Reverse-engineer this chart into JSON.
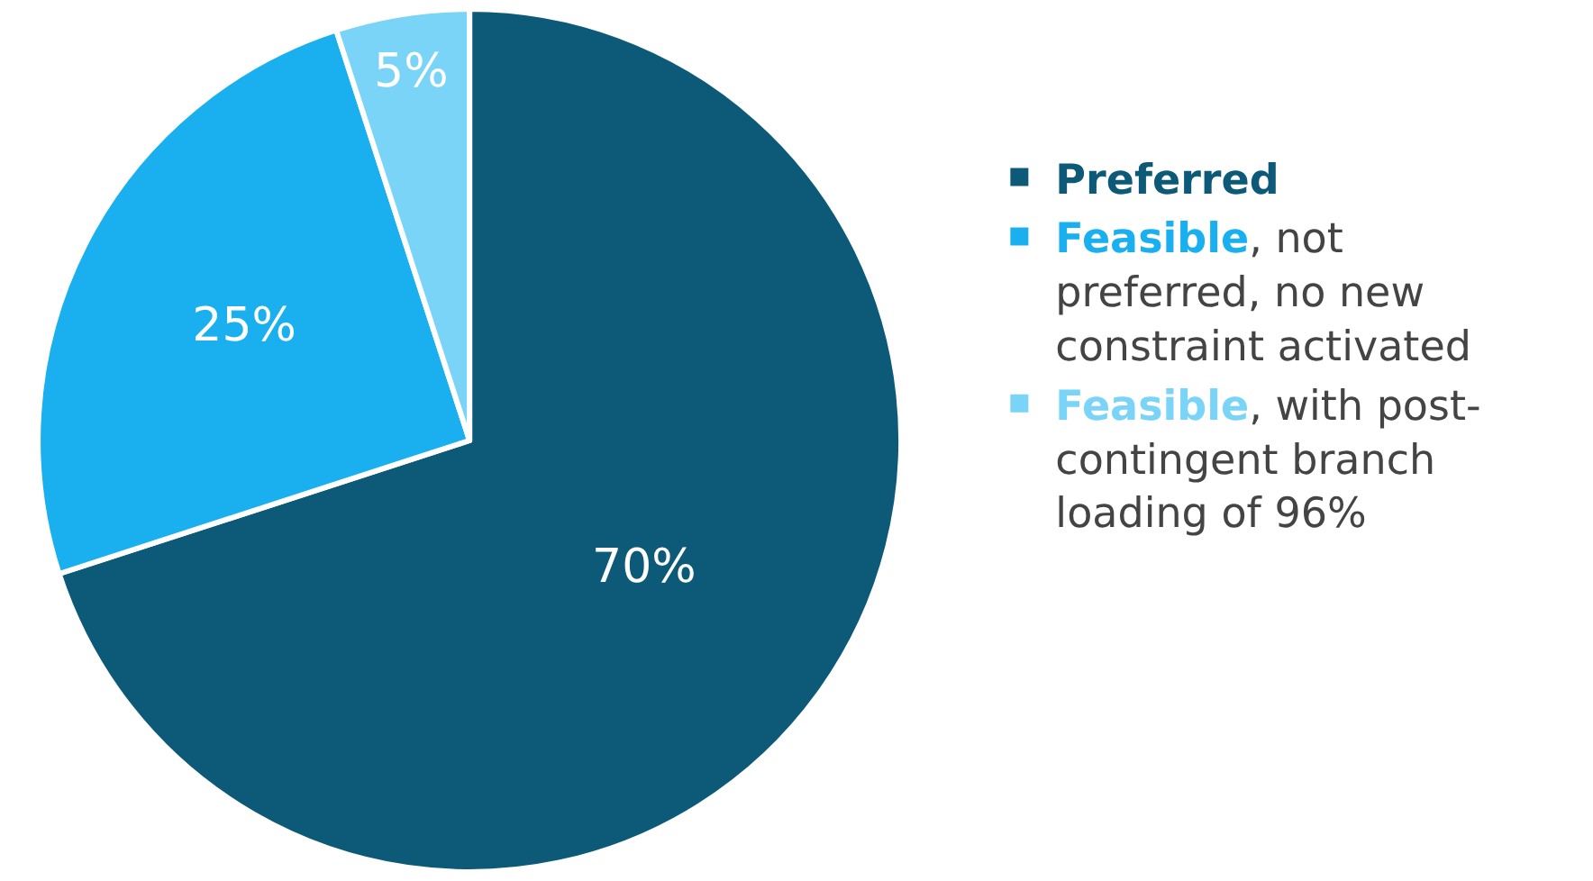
{
  "chart_data": {
    "type": "pie",
    "categories": [
      "Preferred",
      "Feasible, not preferred, no new constraint activated",
      "Feasible, with post-contingent branch loading of 96%"
    ],
    "values": [
      70,
      25,
      5
    ],
    "colors": [
      "#0d5a78",
      "#1ab0f0",
      "#79d4f7"
    ],
    "value_labels": [
      "70%",
      "25%",
      "5%"
    ],
    "legend": "right"
  }
}
